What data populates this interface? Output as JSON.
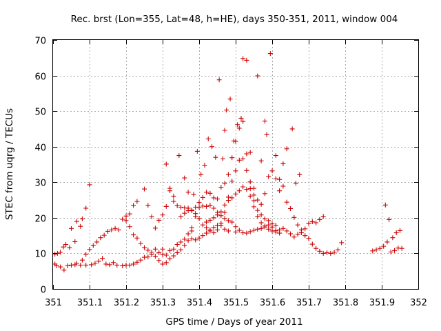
{
  "chart_data": {
    "type": "scatter",
    "title": "Rec. brst (Lon=355, Lat=48, h=HE), days 350-351, 2011, window 004",
    "xlabel": "GPS time / Days of year 2011",
    "ylabel": "STEC from uqrg / TECUs",
    "xlim": [
      351,
      352
    ],
    "ylim": [
      0,
      70
    ],
    "xticks": [
      351,
      351.1,
      351.2,
      351.3,
      351.4,
      351.5,
      351.6,
      351.7,
      351.8,
      351.9,
      352
    ],
    "xtick_labels": [
      "351",
      "351.1",
      "351.2",
      "351.3",
      "351.4",
      "351.5",
      "351.6",
      "351.7",
      "351.8",
      "351.9",
      "352"
    ],
    "yticks": [
      0,
      10,
      20,
      30,
      40,
      50,
      60,
      70
    ],
    "ytick_labels": [
      "0",
      "10",
      "20",
      "30",
      "40",
      "50",
      "60",
      "70"
    ],
    "grid": true,
    "marker": "plus",
    "marker_color": "#cc0000",
    "points": [
      [
        351.005,
        9.8
      ],
      [
        351.012,
        10.0
      ],
      [
        351.02,
        10.3
      ],
      [
        351.028,
        11.8
      ],
      [
        351.035,
        12.5
      ],
      [
        351.045,
        11.6
      ],
      [
        351.05,
        17.0
      ],
      [
        351.06,
        13.3
      ],
      [
        351.065,
        19.0
      ],
      [
        351.075,
        17.6
      ],
      [
        351.08,
        19.7
      ],
      [
        351.09,
        22.7
      ],
      [
        351.1,
        29.3
      ],
      [
        351.005,
        7.0
      ],
      [
        351.01,
        6.5
      ],
      [
        351.02,
        6.2
      ],
      [
        351.03,
        5.3
      ],
      [
        351.04,
        6.5
      ],
      [
        351.05,
        6.7
      ],
      [
        351.06,
        6.8
      ],
      [
        351.065,
        7.2
      ],
      [
        351.075,
        6.7
      ],
      [
        351.09,
        6.7
      ],
      [
        351.105,
        6.8
      ],
      [
        351.115,
        7.2
      ],
      [
        351.125,
        7.8
      ],
      [
        351.135,
        8.6
      ],
      [
        351.145,
        7.0
      ],
      [
        351.155,
        6.8
      ],
      [
        351.165,
        7.4
      ],
      [
        351.175,
        6.7
      ],
      [
        351.19,
        6.5
      ],
      [
        351.2,
        6.7
      ],
      [
        351.21,
        6.7
      ],
      [
        351.22,
        7.0
      ],
      [
        351.23,
        7.5
      ],
      [
        351.24,
        8.1
      ],
      [
        351.25,
        8.9
      ],
      [
        351.26,
        9.0
      ],
      [
        351.27,
        9.6
      ],
      [
        351.28,
        9.2
      ],
      [
        351.29,
        8.0
      ],
      [
        351.3,
        7.0
      ],
      [
        351.31,
        7.4
      ],
      [
        351.32,
        8.5
      ],
      [
        351.33,
        9.3
      ],
      [
        351.34,
        10.2
      ],
      [
        351.35,
        11.0
      ],
      [
        351.36,
        12.3
      ],
      [
        351.37,
        13.6
      ],
      [
        351.38,
        14.1
      ],
      [
        351.39,
        13.8
      ],
      [
        351.4,
        14.3
      ],
      [
        351.41,
        15.0
      ],
      [
        351.42,
        15.7
      ],
      [
        351.43,
        16.6
      ],
      [
        351.44,
        17.3
      ],
      [
        351.45,
        17.9
      ],
      [
        351.46,
        17.8
      ],
      [
        351.47,
        16.8
      ],
      [
        351.48,
        16.3
      ],
      [
        351.08,
        8.1
      ],
      [
        351.09,
        9.7
      ],
      [
        351.1,
        11.1
      ],
      [
        351.11,
        12.2
      ],
      [
        351.12,
        13.2
      ],
      [
        351.13,
        14.4
      ],
      [
        351.14,
        15.1
      ],
      [
        351.15,
        16.2
      ],
      [
        351.16,
        16.6
      ],
      [
        351.17,
        17.0
      ],
      [
        351.18,
        16.6
      ],
      [
        351.19,
        19.6
      ],
      [
        351.2,
        19.2
      ],
      [
        351.21,
        17.5
      ],
      [
        351.22,
        15.2
      ],
      [
        351.23,
        14.3
      ],
      [
        351.24,
        12.8
      ],
      [
        351.25,
        11.6
      ],
      [
        351.26,
        10.9
      ],
      [
        351.27,
        10.3
      ],
      [
        351.28,
        11.2
      ],
      [
        351.29,
        10.2
      ],
      [
        351.3,
        9.6
      ],
      [
        351.31,
        9.5
      ],
      [
        351.32,
        10.8
      ],
      [
        351.33,
        11.2
      ],
      [
        351.34,
        12.5
      ],
      [
        351.35,
        13.2
      ],
      [
        351.36,
        14.0
      ],
      [
        351.37,
        15.5
      ],
      [
        351.38,
        16.3
      ],
      [
        351.2,
        20.5
      ],
      [
        351.21,
        21.1
      ],
      [
        351.22,
        23.5
      ],
      [
        351.23,
        24.6
      ],
      [
        351.25,
        28.1
      ],
      [
        351.26,
        23.5
      ],
      [
        351.27,
        20.3
      ],
      [
        351.28,
        17.1
      ],
      [
        351.29,
        19.3
      ],
      [
        351.3,
        20.8
      ],
      [
        351.31,
        23.2
      ],
      [
        351.32,
        28.3
      ],
      [
        351.33,
        26.1
      ],
      [
        351.34,
        23.4
      ],
      [
        351.35,
        23.0
      ],
      [
        351.36,
        22.8
      ],
      [
        351.37,
        22.7
      ],
      [
        351.38,
        22.2
      ],
      [
        351.39,
        23.0
      ],
      [
        351.4,
        22.9
      ],
      [
        351.41,
        23.3
      ],
      [
        351.42,
        23.2
      ],
      [
        351.43,
        23.5
      ],
      [
        351.44,
        22.7
      ],
      [
        351.45,
        21.5
      ],
      [
        351.46,
        20.6
      ],
      [
        351.47,
        19.8
      ],
      [
        351.48,
        19.2
      ],
      [
        351.49,
        18.8
      ],
      [
        351.5,
        17.5
      ],
      [
        351.3,
        11.2
      ],
      [
        351.31,
        35.1
      ],
      [
        351.32,
        27.6
      ],
      [
        351.33,
        24.6
      ],
      [
        351.345,
        37.5
      ],
      [
        351.36,
        31.2
      ],
      [
        351.37,
        27.2
      ],
      [
        351.385,
        26.6
      ],
      [
        351.395,
        38.7
      ],
      [
        351.405,
        32.2
      ],
      [
        351.415,
        34.8
      ],
      [
        351.425,
        42.2
      ],
      [
        351.435,
        40.0
      ],
      [
        351.445,
        37.0
      ],
      [
        351.455,
        58.8
      ],
      [
        351.465,
        36.6
      ],
      [
        351.47,
        44.6
      ],
      [
        351.475,
        50.3
      ],
      [
        351.485,
        53.4
      ],
      [
        351.495,
        41.6
      ],
      [
        351.505,
        46.2
      ],
      [
        351.515,
        48.0
      ],
      [
        351.52,
        64.8
      ],
      [
        351.53,
        64.3
      ],
      [
        351.54,
        38.4
      ],
      [
        351.55,
        28.3
      ],
      [
        351.56,
        59.9
      ],
      [
        351.57,
        36.0
      ],
      [
        351.58,
        47.2
      ],
      [
        351.585,
        43.4
      ],
      [
        351.595,
        66.2
      ],
      [
        351.61,
        37.5
      ],
      [
        351.62,
        27.6
      ],
      [
        351.63,
        35.2
      ],
      [
        351.64,
        39.4
      ],
      [
        351.655,
        45.0
      ],
      [
        351.665,
        29.7
      ],
      [
        351.675,
        32.1
      ],
      [
        351.35,
        20.3
      ],
      [
        351.36,
        21.3
      ],
      [
        351.37,
        22.0
      ],
      [
        351.38,
        22.0
      ],
      [
        351.39,
        21.2
      ],
      [
        351.4,
        19.8
      ],
      [
        351.41,
        18.0
      ],
      [
        351.42,
        17.2
      ],
      [
        351.43,
        16.3
      ],
      [
        351.44,
        15.8
      ],
      [
        351.45,
        16.6
      ],
      [
        351.46,
        18.5
      ],
      [
        351.47,
        21.5
      ],
      [
        351.48,
        25.8
      ],
      [
        351.49,
        30.3
      ],
      [
        351.5,
        33.2
      ],
      [
        351.51,
        36.2
      ],
      [
        351.52,
        36.6
      ],
      [
        351.53,
        33.3
      ],
      [
        351.54,
        28.2
      ],
      [
        351.55,
        24.8
      ],
      [
        351.56,
        22.1
      ],
      [
        351.57,
        20.8
      ],
      [
        351.58,
        19.7
      ],
      [
        351.59,
        19.2
      ],
      [
        351.6,
        17.4
      ],
      [
        351.61,
        16.4
      ],
      [
        351.62,
        16.6
      ],
      [
        351.63,
        17.0
      ],
      [
        351.64,
        16.3
      ],
      [
        351.65,
        15.5
      ],
      [
        351.66,
        14.6
      ],
      [
        351.67,
        15.4
      ],
      [
        351.68,
        15.8
      ],
      [
        351.69,
        15.0
      ],
      [
        351.7,
        14.2
      ],
      [
        351.71,
        12.6
      ],
      [
        351.72,
        11.4
      ],
      [
        351.73,
        10.6
      ],
      [
        351.74,
        10.0
      ],
      [
        351.75,
        10.2
      ],
      [
        351.76,
        10.0
      ],
      [
        351.77,
        10.3
      ],
      [
        351.78,
        11.0
      ],
      [
        351.79,
        13.0
      ],
      [
        351.38,
        17.2
      ],
      [
        351.39,
        20.4
      ],
      [
        351.4,
        24.3
      ],
      [
        351.41,
        25.7
      ],
      [
        351.42,
        27.2
      ],
      [
        351.43,
        26.9
      ],
      [
        351.44,
        25.6
      ],
      [
        351.45,
        25.3
      ],
      [
        351.46,
        28.6
      ],
      [
        351.47,
        29.7
      ],
      [
        351.48,
        32.2
      ],
      [
        351.49,
        36.9
      ],
      [
        351.5,
        41.5
      ],
      [
        351.51,
        45.2
      ],
      [
        351.52,
        47.1
      ],
      [
        351.53,
        38.0
      ],
      [
        351.54,
        30.1
      ],
      [
        351.55,
        26.4
      ],
      [
        351.56,
        25.0
      ],
      [
        351.57,
        23.8
      ],
      [
        351.58,
        26.8
      ],
      [
        351.59,
        31.6
      ],
      [
        351.6,
        33.2
      ],
      [
        351.61,
        31.0
      ],
      [
        351.62,
        30.8
      ],
      [
        351.63,
        28.9
      ],
      [
        351.64,
        24.4
      ],
      [
        351.65,
        22.6
      ],
      [
        351.66,
        20.1
      ],
      [
        351.67,
        18.0
      ],
      [
        351.68,
        16.6
      ],
      [
        351.69,
        16.9
      ],
      [
        351.7,
        18.4
      ],
      [
        351.71,
        18.9
      ],
      [
        351.72,
        18.6
      ],
      [
        351.73,
        19.5
      ],
      [
        351.74,
        20.4
      ],
      [
        351.42,
        18.8
      ],
      [
        351.43,
        19.3
      ],
      [
        351.44,
        20.0
      ],
      [
        351.45,
        20.8
      ],
      [
        351.46,
        21.7
      ],
      [
        351.47,
        23.6
      ],
      [
        351.48,
        24.9
      ],
      [
        351.49,
        25.6
      ],
      [
        351.5,
        26.7
      ],
      [
        351.51,
        27.6
      ],
      [
        351.52,
        28.7
      ],
      [
        351.53,
        28.0
      ],
      [
        351.54,
        26.1
      ],
      [
        351.55,
        23.1
      ],
      [
        351.56,
        20.4
      ],
      [
        351.57,
        18.6
      ],
      [
        351.58,
        17.7
      ],
      [
        351.59,
        16.8
      ],
      [
        351.6,
        16.3
      ],
      [
        351.61,
        16.0
      ],
      [
        351.62,
        15.7
      ],
      [
        351.5,
        16.0
      ],
      [
        351.51,
        16.5
      ],
      [
        351.52,
        15.8
      ],
      [
        351.53,
        15.7
      ],
      [
        351.54,
        16.1
      ],
      [
        351.55,
        16.5
      ],
      [
        351.56,
        16.8
      ],
      [
        351.57,
        17.0
      ],
      [
        351.58,
        17.4
      ],
      [
        351.59,
        18.0
      ],
      [
        351.6,
        18.3
      ],
      [
        351.61,
        17.9
      ],
      [
        351.875,
        10.7
      ],
      [
        351.885,
        11.0
      ],
      [
        351.895,
        11.4
      ],
      [
        351.905,
        12.0
      ],
      [
        351.91,
        23.6
      ],
      [
        351.915,
        13.2
      ],
      [
        351.92,
        19.5
      ],
      [
        351.925,
        10.4
      ],
      [
        351.93,
        14.4
      ],
      [
        351.935,
        10.8
      ],
      [
        351.94,
        15.8
      ],
      [
        351.945,
        11.5
      ],
      [
        351.95,
        16.4
      ],
      [
        351.955,
        11.4
      ]
    ]
  }
}
